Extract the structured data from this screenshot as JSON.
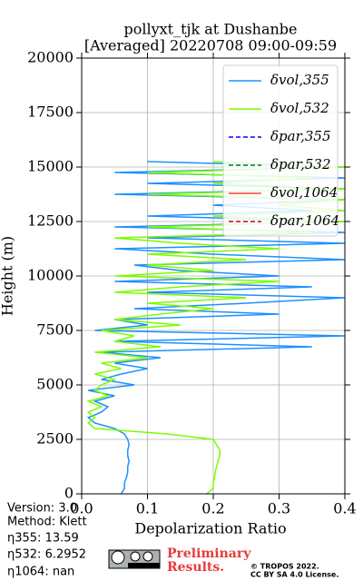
{
  "chart_data": {
    "type": "line",
    "title": "pollyxt_tjk at Dushanbe",
    "subtitle": "[Averaged] 20220708 09:00-09:59",
    "xlabel": "Depolarization Ratio",
    "ylabel": "Height (m)",
    "xlim": [
      0,
      0.4
    ],
    "ylim": [
      0,
      20000
    ],
    "xticks": [
      {
        "value": 0,
        "label": "0.0"
      },
      0.1,
      0.2,
      0.3,
      0.4
    ],
    "yticks": [
      0,
      2500,
      5000,
      7500,
      10000,
      12500,
      15000,
      17500,
      20000
    ],
    "grid": true,
    "legend": "upper right",
    "y": [
      0,
      250,
      500,
      750,
      1000,
      1250,
      1500,
      1750,
      2000,
      2250,
      2500,
      2750,
      3000,
      3250,
      3500,
      3750,
      4000,
      4250,
      4500,
      4750,
      5000,
      5250,
      5500,
      5750,
      6000,
      6250,
      6500,
      6750,
      7000,
      7250,
      7500,
      7750,
      8000,
      8250,
      8500,
      8750,
      9000,
      9250,
      9500,
      9750,
      10000,
      10250,
      10500,
      10750,
      11000,
      11250,
      11500,
      11750,
      12000,
      12250,
      12500,
      12750,
      13000,
      13250,
      13500,
      13750,
      14000,
      14250,
      14500,
      14750,
      15000,
      15250
    ],
    "series": [
      {
        "name": "δvol,355",
        "color": "#1e90ff",
        "linestyle": "solid",
        "values": [
          0.06,
          0.065,
          0.065,
          0.068,
          0.07,
          0.07,
          0.072,
          0.07,
          0.07,
          0.072,
          0.07,
          0.065,
          0.05,
          0.02,
          0.01,
          0.03,
          0.04,
          0.02,
          0.05,
          0.01,
          0.08,
          0.03,
          0.06,
          0.1,
          0.05,
          0.12,
          0.03,
          0.35,
          0.05,
          0.4,
          0.02,
          0.1,
          0.05,
          0.3,
          0.08,
          0.25,
          0.4,
          0.1,
          0.35,
          0.05,
          0.3,
          0.15,
          0.08,
          0.4,
          0.2,
          0.05,
          0.4,
          0.1,
          0.4,
          0.05,
          0.4,
          0.1,
          0.35,
          0.2,
          0.4,
          0.05,
          0.4,
          0.1,
          0.4,
          0.05,
          0.4,
          0.1
        ]
      },
      {
        "name": "δvol,532",
        "color": "#7cfc00",
        "linestyle": "solid",
        "values": [
          0.19,
          0.2,
          0.2,
          0.202,
          0.203,
          0.205,
          0.207,
          0.21,
          0.21,
          0.205,
          0.2,
          0.13,
          0.02,
          0.01,
          0.02,
          0.01,
          0.03,
          0.01,
          0.04,
          0.02,
          0.03,
          0.05,
          0.02,
          0.06,
          0.03,
          0.1,
          0.02,
          0.12,
          0.05,
          0.08,
          0.03,
          0.15,
          0.05,
          0.12,
          0.2,
          0.1,
          0.25,
          0.05,
          0.15,
          0.3,
          0.05,
          0.2,
          0.1,
          0.25,
          0.1,
          0.3,
          0.15,
          0.05,
          0.35,
          0.1,
          0.4,
          0.2,
          0.4,
          0.3,
          0.4,
          0.1,
          0.4,
          0.2,
          0.35,
          0.1,
          0.4,
          0.2
        ]
      },
      {
        "name": "δpar,355",
        "color": "#0000ff",
        "linestyle": "dashed",
        "values": [
          null,
          null,
          null,
          null,
          null,
          null,
          null,
          null,
          null,
          null,
          null,
          null,
          null,
          null,
          null,
          null,
          null,
          null,
          null,
          null,
          null,
          null,
          null,
          null,
          null,
          null,
          null,
          null,
          null,
          null,
          null,
          null,
          null,
          null,
          null,
          null,
          null,
          null,
          null,
          null,
          null,
          null,
          null,
          null,
          null,
          null,
          null,
          null,
          null,
          null,
          null,
          null,
          null,
          null,
          null,
          null,
          null,
          null,
          null,
          null,
          null,
          null
        ]
      },
      {
        "name": "δpar,532",
        "color": "#008000",
        "linestyle": "dashed",
        "values": [
          null,
          null,
          null,
          null,
          null,
          null,
          null,
          null,
          null,
          null,
          null,
          null,
          null,
          null,
          null,
          null,
          null,
          null,
          null,
          null,
          null,
          null,
          null,
          null,
          null,
          null,
          null,
          null,
          null,
          null,
          null,
          null,
          null,
          null,
          null,
          null,
          null,
          null,
          null,
          null,
          null,
          null,
          null,
          null,
          null,
          null,
          null,
          null,
          null,
          null,
          null,
          null,
          null,
          null,
          null,
          null,
          null,
          null,
          null,
          null,
          null,
          null
        ]
      },
      {
        "name": "δvol,1064",
        "color": "#ff4040",
        "linestyle": "solid",
        "values": [
          null,
          null,
          null,
          null,
          null,
          null,
          null,
          null,
          null,
          null,
          null,
          null,
          null,
          null,
          null,
          null,
          null,
          null,
          null,
          null,
          null,
          null,
          null,
          null,
          null,
          null,
          null,
          null,
          null,
          null,
          null,
          null,
          null,
          null,
          null,
          null,
          null,
          null,
          null,
          null,
          null,
          null,
          null,
          null,
          null,
          null,
          null,
          null,
          null,
          null,
          null,
          null,
          null,
          null,
          null,
          null,
          null,
          null,
          null,
          null,
          null,
          null
        ]
      },
      {
        "name": "δpar,1064",
        "color": "#cc0000",
        "linestyle": "dashed",
        "values": [
          null,
          null,
          null,
          null,
          null,
          null,
          null,
          null,
          null,
          null,
          null,
          null,
          null,
          null,
          null,
          null,
          null,
          null,
          null,
          null,
          null,
          null,
          null,
          null,
          null,
          null,
          null,
          null,
          null,
          null,
          null,
          null,
          null,
          null,
          null,
          null,
          null,
          null,
          null,
          null,
          null,
          null,
          null,
          null,
          null,
          null,
          null,
          null,
          null,
          null,
          null,
          null,
          null,
          null,
          null,
          null,
          null,
          null,
          null,
          null,
          null,
          null
        ]
      }
    ],
    "annotations": [
      "Version: 3.0",
      "Method: Klett",
      "η355:  13.59",
      "η532: 6.2952",
      "η1064:    nan",
      "Preliminary",
      "Results.",
      "© TROPOS 2022.",
      "CC BY SA 4.0 License."
    ]
  }
}
